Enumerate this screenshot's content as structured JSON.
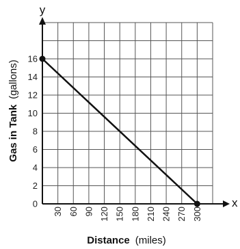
{
  "chart_data": {
    "type": "line",
    "axis_letters": {
      "x": "x",
      "y": "y"
    },
    "xlabel": {
      "bold": "Distance",
      "normal": "(miles)"
    },
    "ylabel": {
      "bold": "Gas in Tank",
      "normal": "(gallons)"
    },
    "x_ticks": [
      30,
      60,
      90,
      120,
      150,
      180,
      210,
      240,
      270,
      300
    ],
    "y_ticks": [
      0,
      2,
      4,
      6,
      8,
      10,
      12,
      14,
      16
    ],
    "xlim": [
      0,
      330
    ],
    "ylim": [
      0,
      20
    ],
    "grid": true,
    "series": [
      {
        "x": [
          0,
          300
        ],
        "y": [
          16,
          0
        ]
      }
    ],
    "points": [
      {
        "x": 0,
        "y": 16
      },
      {
        "x": 300,
        "y": 0
      }
    ]
  }
}
